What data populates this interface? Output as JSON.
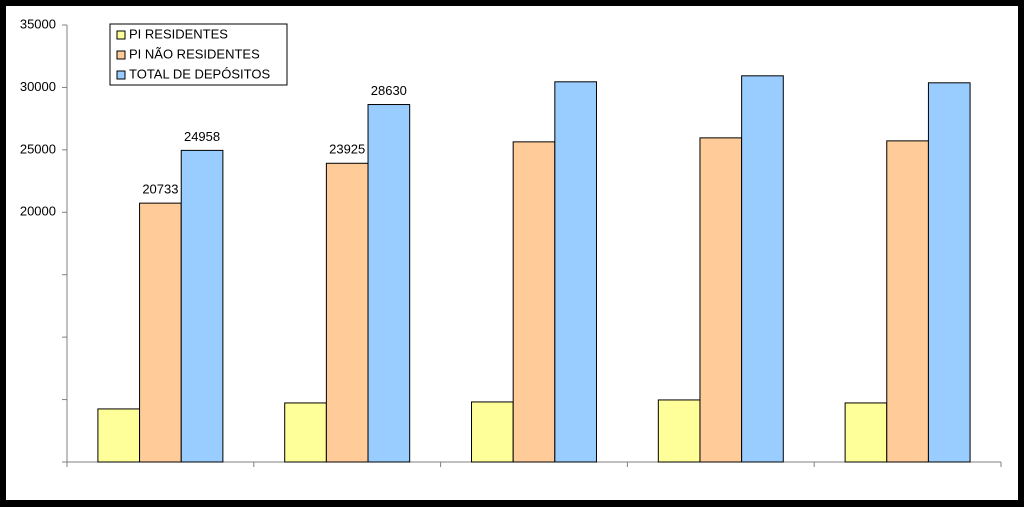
{
  "chart_data": {
    "type": "bar",
    "categories": [
      null,
      null,
      null,
      null,
      null
    ],
    "series": [
      {
        "name": "PI RESIDENTES",
        "color": "#ffff99",
        "values": [
          4250,
          4730,
          4810,
          4970,
          4730
        ]
      },
      {
        "name": "PI NÃO RESIDENTES",
        "color": "#ffcc99",
        "values": [
          20733,
          23925,
          25640,
          25960,
          25720
        ],
        "value_labels": [
          "20733",
          "23925",
          null,
          null,
          null
        ]
      },
      {
        "name": "TOTAL DE DEPÓSITOS",
        "color": "#99ccff",
        "values": [
          24958,
          28630,
          30450,
          30930,
          30370
        ],
        "value_labels": [
          "24958",
          "28630",
          null,
          null,
          null
        ]
      }
    ],
    "ylim": [
      0,
      35000
    ],
    "yticks": [
      {
        "value": 0,
        "label": null
      },
      {
        "value": 5000,
        "label": null
      },
      {
        "value": 10000,
        "label": null
      },
      {
        "value": 15000,
        "label": null
      },
      20000,
      25000,
      30000,
      35000
    ],
    "legend": "top-left"
  }
}
